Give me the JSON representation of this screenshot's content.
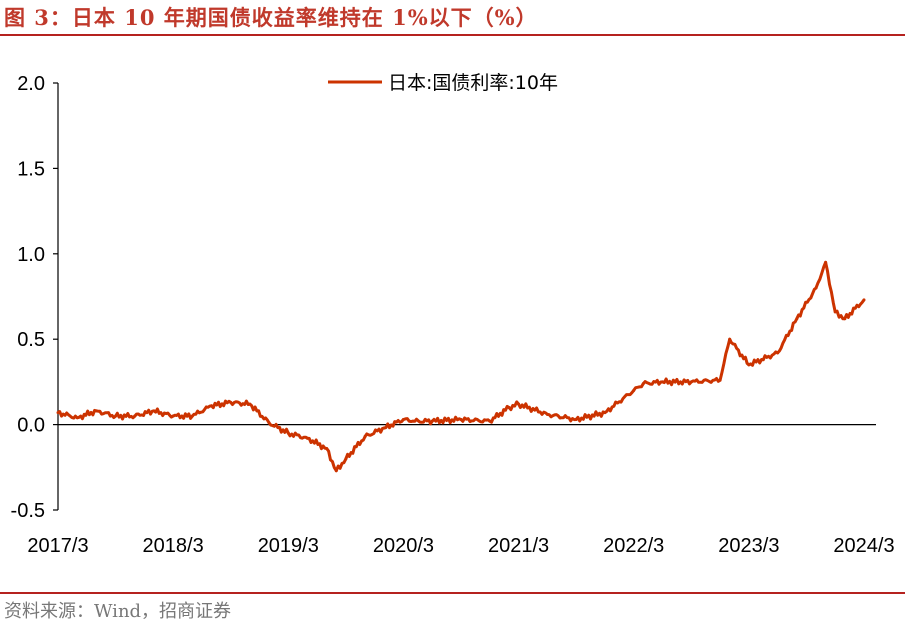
{
  "figure": {
    "title": "图 3：日本 10 年期国债收益率维持在 1%以下（%）",
    "source": "资料来源：Wind，招商证券"
  },
  "colors": {
    "accent": "#b5221f",
    "series": "#cc3300",
    "title": "#c0392b"
  },
  "chart_data": {
    "type": "line",
    "title": "",
    "xlabel": "",
    "ylabel": "",
    "ylim": [
      -0.5,
      2.0
    ],
    "yticks": [
      "2.0",
      "1.5",
      "1.0",
      "0.5",
      "0.0",
      "-0.5"
    ],
    "xticks": [
      "2017/3",
      "2018/3",
      "2019/3",
      "2020/3",
      "2021/3",
      "2022/3",
      "2023/3",
      "2024/3"
    ],
    "grid": false,
    "legend_position": "top-center",
    "series": [
      {
        "name": "日本:国债利率:10年",
        "x": [
          "2017/3",
          "2017/5",
          "2017/7",
          "2017/9",
          "2017/11",
          "2018/1",
          "2018/3",
          "2018/5",
          "2018/7",
          "2018/9",
          "2018/11",
          "2019/1",
          "2019/3",
          "2019/5",
          "2019/7",
          "2019/8",
          "2019/9",
          "2019/11",
          "2020/1",
          "2020/3",
          "2020/4",
          "2020/6",
          "2020/9",
          "2020/12",
          "2021/2",
          "2021/3",
          "2021/6",
          "2021/9",
          "2021/12",
          "2022/3",
          "2022/4",
          "2022/6",
          "2022/9",
          "2022/12",
          "2023/1",
          "2023/3",
          "2023/6",
          "2023/8",
          "2023/10",
          "2023/11",
          "2023/12",
          "2024/1",
          "2024/3"
        ],
        "values": [
          0.07,
          0.04,
          0.08,
          0.05,
          0.05,
          0.08,
          0.05,
          0.05,
          0.11,
          0.13,
          0.12,
          0.01,
          -0.05,
          -0.08,
          -0.14,
          -0.27,
          -0.2,
          -0.07,
          -0.02,
          0.03,
          0.02,
          0.02,
          0.03,
          0.02,
          0.1,
          0.12,
          0.06,
          0.03,
          0.07,
          0.2,
          0.24,
          0.25,
          0.25,
          0.26,
          0.5,
          0.35,
          0.42,
          0.62,
          0.8,
          0.95,
          0.66,
          0.62,
          0.73
        ]
      }
    ]
  }
}
